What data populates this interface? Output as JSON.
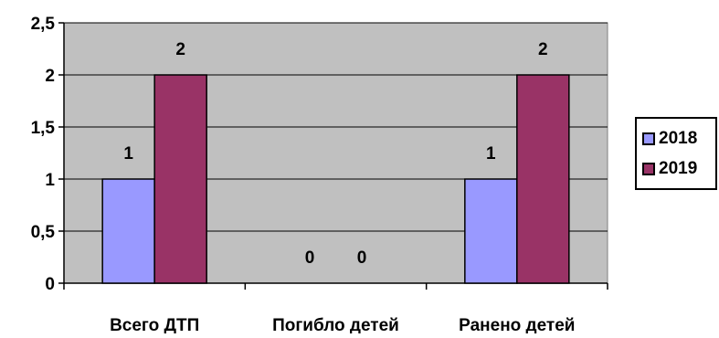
{
  "chart_data": {
    "type": "bar",
    "categories": [
      "Всего ДТП",
      "Погибло детей",
      "Ранено детей"
    ],
    "series": [
      {
        "name": "2018",
        "values": [
          1,
          0,
          1
        ],
        "color": "#9999ff"
      },
      {
        "name": "2019",
        "values": [
          2,
          0,
          2
        ],
        "color": "#993366"
      }
    ],
    "data_labels": [
      [
        "1",
        "0",
        "1"
      ],
      [
        "2",
        "0",
        "2"
      ]
    ],
    "y_ticks": [
      "0",
      "0,5",
      "1",
      "1,5",
      "2",
      "2,5"
    ],
    "ylim": [
      0,
      2.5
    ],
    "grid": true,
    "plot_background": "#c0c0c0",
    "legend_position": "right",
    "title": "",
    "xlabel": "",
    "ylabel": ""
  }
}
